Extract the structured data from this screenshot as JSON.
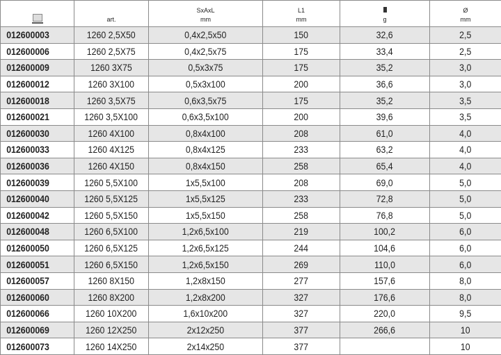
{
  "header": {
    "col1_icon": "catalog-icon",
    "art": "art.",
    "sxaxl": "SxAxL",
    "sxaxl_unit": "mm",
    "l1": "L1",
    "l1_unit": "mm",
    "weight_icon": "weight-icon",
    "weight_unit": "g",
    "diameter": "Ø",
    "diameter_unit": "mm"
  },
  "rows": [
    [
      "012600003",
      "1260 2,5X50",
      "0,4x2,5x50",
      "150",
      "32,6",
      "2,5"
    ],
    [
      "012600006",
      "1260 2,5X75",
      "0,4x2,5x75",
      "175",
      "33,4",
      "2,5"
    ],
    [
      "012600009",
      "1260 3X75",
      "0,5x3x75",
      "175",
      "35,2",
      "3,0"
    ],
    [
      "012600012",
      "1260 3X100",
      "0,5x3x100",
      "200",
      "36,6",
      "3,0"
    ],
    [
      "012600018",
      "1260 3,5X75",
      "0,6x3,5x75",
      "175",
      "35,2",
      "3,5"
    ],
    [
      "012600021",
      "1260 3,5X100",
      "0,6x3,5x100",
      "200",
      "39,6",
      "3,5"
    ],
    [
      "012600030",
      "1260 4X100",
      "0,8x4x100",
      "208",
      "61,0",
      "4,0"
    ],
    [
      "012600033",
      "1260 4X125",
      "0,8x4x125",
      "233",
      "63,2",
      "4,0"
    ],
    [
      "012600036",
      "1260 4X150",
      "0,8x4x150",
      "258",
      "65,4",
      "4,0"
    ],
    [
      "012600039",
      "1260 5,5X100",
      "1x5,5x100",
      "208",
      "69,0",
      "5,0"
    ],
    [
      "012600040",
      "1260 5,5X125",
      "1x5,5x125",
      "233",
      "72,8",
      "5,0"
    ],
    [
      "012600042",
      "1260 5,5X150",
      "1x5,5x150",
      "258",
      "76,8",
      "5,0"
    ],
    [
      "012600048",
      "1260 6,5X100",
      "1,2x6,5x100",
      "219",
      "100,2",
      "6,0"
    ],
    [
      "012600050",
      "1260 6,5X125",
      "1,2x6,5x125",
      "244",
      "104,6",
      "6,0"
    ],
    [
      "012600051",
      "1260 6,5X150",
      "1,2x6,5x150",
      "269",
      "110,0",
      "6,0"
    ],
    [
      "012600057",
      "1260 8X150",
      "1,2x8x150",
      "277",
      "157,6",
      "8,0"
    ],
    [
      "012600060",
      "1260 8X200",
      "1,2x8x200",
      "327",
      "176,6",
      "8,0"
    ],
    [
      "012600066",
      "1260 10X200",
      "1,6x10x200",
      "327",
      "220,0",
      "9,5"
    ],
    [
      "012600069",
      "1260 12X250",
      "2x12x250",
      "377",
      "266,6",
      "10"
    ],
    [
      "012600073",
      "1260 14X250",
      "2x14x250",
      "377",
      "",
      "10"
    ]
  ]
}
